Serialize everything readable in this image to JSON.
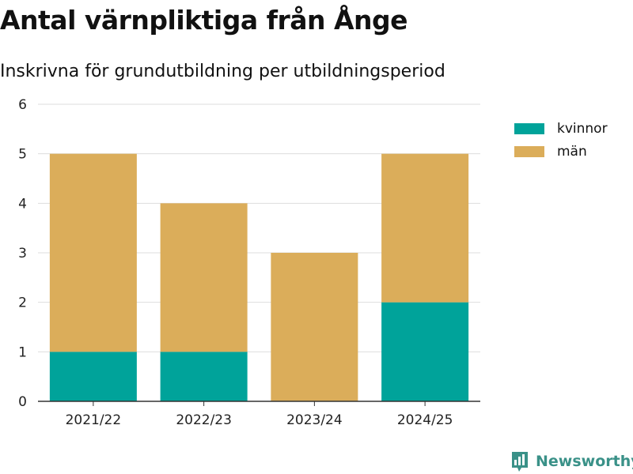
{
  "header": {
    "title": "Antal värnpliktiga från Ånge",
    "subtitle": "Inskrivna för grundutbildning per utbildningsperiod"
  },
  "brand": {
    "name": "Newsworthy",
    "icon": "newsworthy-logo-icon"
  },
  "colors": {
    "kvinnor": "#00a39a",
    "man": "#dbad5a",
    "grid": "#dddddd",
    "axis": "#333333",
    "brand": "#3a9188"
  },
  "chart_data": {
    "type": "bar",
    "stacked": true,
    "title": "Antal värnpliktiga från Ånge",
    "subtitle": "Inskrivna för grundutbildning per utbildningsperiod",
    "xlabel": "",
    "ylabel": "",
    "ylim": [
      0,
      6
    ],
    "yticks": [
      0,
      1,
      2,
      3,
      4,
      5,
      6
    ],
    "grid": true,
    "legend_position": "top-right",
    "categories": [
      "2021/22",
      "2022/23",
      "2023/24",
      "2024/25"
    ],
    "series": [
      {
        "name": "kvinnor",
        "values": [
          1,
          1,
          0,
          2
        ]
      },
      {
        "name": "män",
        "values": [
          4,
          3,
          3,
          3
        ]
      }
    ]
  }
}
